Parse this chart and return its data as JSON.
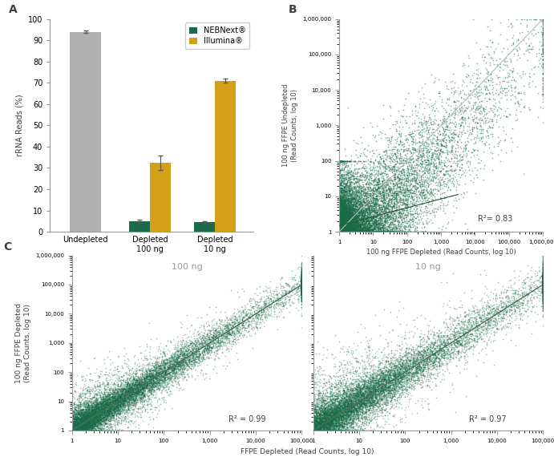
{
  "panel_A": {
    "categories": [
      "Undepleted",
      "Depleted\n100 ng",
      "Depleted\n10 ng"
    ],
    "nebnext_values": [
      94.0,
      5.0,
      4.5
    ],
    "nebnext_errors": [
      0.5,
      0.7,
      0.5
    ],
    "illumina_values": [
      null,
      32.5,
      71.0
    ],
    "illumina_errors": [
      null,
      3.5,
      0.8
    ],
    "undepleted_value": 94.0,
    "undepleted_error": 0.5,
    "bar_width": 0.32,
    "ylabel": "rRNA Reads (%)",
    "ylim": [
      0,
      100
    ],
    "yticks": [
      0,
      10,
      20,
      30,
      40,
      50,
      60,
      70,
      80,
      90,
      100
    ],
    "color_nebnext": "#1a6b4a",
    "color_illumina": "#d4a017",
    "color_undepleted": "#b0b0b0",
    "legend_nebnext": "NEBNext®",
    "legend_illumina": "Illumina®",
    "panel_label": "A"
  },
  "panel_B": {
    "xlabel": "100 ng FFPE Depleted (Read Counts, log 10)",
    "ylabel": "100 ng FFPE Undepleted\n(Read Counts, log 10)",
    "r2_text": "R²= 0.83",
    "dot_color": "#1a6b4a",
    "dot_alpha": 0.5,
    "dot_size": 1.5,
    "n_points": 10000,
    "panel_label": "B",
    "seed_B": 42
  },
  "panel_C_left": {
    "title": "100 ng",
    "r2_text": "R² = 0.99",
    "dot_color": "#1a6b4a",
    "n_points": 10000,
    "seed": 123,
    "noise_std": 0.25
  },
  "panel_C_right": {
    "title": "10 ng",
    "r2_text": "R² = 0.97",
    "dot_color": "#1a6b4a",
    "n_points": 10000,
    "seed": 456,
    "noise_std": 0.35
  },
  "panel_C": {
    "xlabel": "FFPE Depleted (Read Counts, log 10)",
    "ylabel": "100 ng FFPE Depleted\n(Read Counts, log 10)",
    "panel_label": "C"
  },
  "figure_bg": "#ffffff",
  "text_color": "#404040",
  "axis_color": "#999999"
}
